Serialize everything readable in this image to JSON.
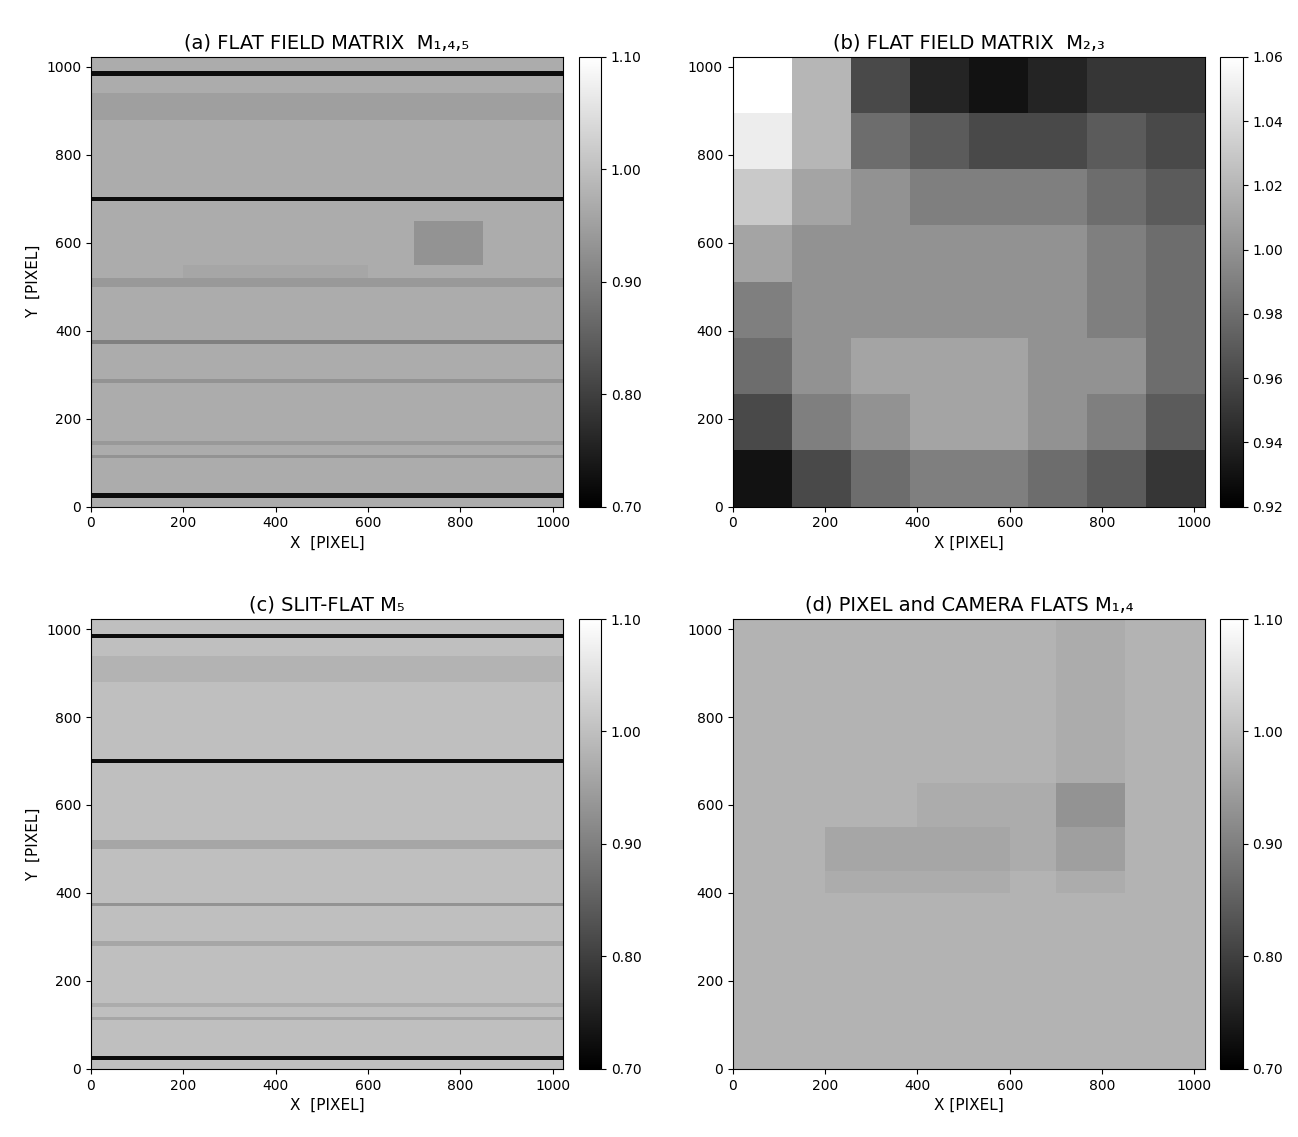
{
  "chart_data": [
    {
      "type": "heatmap",
      "title": "(a) FLAT FIELD MATRIX  M₁,₄,₅",
      "xlabel": "X  [PIXEL]",
      "ylabel": "Y  [PIXEL]",
      "xlim": [
        0,
        1023
      ],
      "ylim": [
        0,
        1023
      ],
      "xticks": [
        0,
        200,
        400,
        600,
        800,
        1000
      ],
      "yticks": [
        0,
        200,
        400,
        600,
        800,
        1000
      ],
      "x_edges": [
        0,
        200,
        400,
        600,
        700,
        850,
        1023
      ],
      "y_edges": [
        0,
        20,
        30,
        110,
        118,
        140,
        150,
        280,
        290,
        370,
        378,
        500,
        520,
        550,
        650,
        695,
        705,
        880,
        940,
        980,
        990,
        1023
      ],
      "cells": [
        [
          0.97,
          0.97,
          0.97,
          0.97,
          0.97,
          0.97
        ],
        [
          0.72,
          0.72,
          0.72,
          0.72,
          0.72,
          0.72
        ],
        [
          0.97,
          0.97,
          0.97,
          0.97,
          0.97,
          0.97
        ],
        [
          0.93,
          0.93,
          0.93,
          0.93,
          0.93,
          0.93
        ],
        [
          0.97,
          0.97,
          0.97,
          0.97,
          0.97,
          0.97
        ],
        [
          0.94,
          0.94,
          0.94,
          0.94,
          0.94,
          0.94
        ],
        [
          0.97,
          0.97,
          0.97,
          0.97,
          0.97,
          0.97
        ],
        [
          0.93,
          0.93,
          0.93,
          0.93,
          0.93,
          0.93
        ],
        [
          0.97,
          0.97,
          0.97,
          0.97,
          0.97,
          0.97
        ],
        [
          0.9,
          0.9,
          0.9,
          0.9,
          0.9,
          0.9
        ],
        [
          0.97,
          0.97,
          0.97,
          0.97,
          0.97,
          0.97
        ],
        [
          0.94,
          0.94,
          0.94,
          0.94,
          0.94,
          0.94
        ],
        [
          0.97,
          0.96,
          0.96,
          0.97,
          0.97,
          0.97
        ],
        [
          0.97,
          0.97,
          0.97,
          0.97,
          0.93,
          0.97
        ],
        [
          0.97,
          0.97,
          0.97,
          0.97,
          0.97,
          0.97
        ],
        [
          0.72,
          0.72,
          0.72,
          0.72,
          0.72,
          0.72
        ],
        [
          0.97,
          0.97,
          0.97,
          0.97,
          0.97,
          0.97
        ],
        [
          0.95,
          0.95,
          0.95,
          0.95,
          0.95,
          0.95
        ],
        [
          0.97,
          0.97,
          0.97,
          0.97,
          0.97,
          0.97
        ],
        [
          0.72,
          0.72,
          0.72,
          0.72,
          0.72,
          0.72
        ],
        [
          0.97,
          0.97,
          0.97,
          0.97,
          0.97,
          0.97
        ]
      ],
      "colorbar": {
        "range": [
          0.7,
          1.1
        ],
        "ticks": [
          {
            "value": 0.7,
            "label": "0.70"
          },
          {
            "value": 0.8,
            "label": "0.80"
          },
          {
            "value": 0.9,
            "label": "0.90"
          },
          {
            "value": 1.0,
            "label": "1.00"
          },
          {
            "value": 1.1,
            "label": "1.10"
          }
        ]
      }
    },
    {
      "type": "heatmap",
      "title": "(b) FLAT FIELD MATRIX  M₂,₃",
      "xlabel": "X [PIXEL]",
      "xlim": [
        0,
        1023
      ],
      "ylim": [
        0,
        1023
      ],
      "xticks": [
        0,
        200,
        400,
        600,
        800,
        1000
      ],
      "yticks": [
        0,
        200,
        400,
        600,
        800,
        1000
      ],
      "x_edges": [
        0,
        128,
        256,
        384,
        512,
        640,
        768,
        896,
        1023
      ],
      "y_edges": [
        0,
        128,
        256,
        384,
        512,
        640,
        768,
        896,
        1023
      ],
      "cells": [
        [
          0.93,
          0.96,
          0.98,
          0.99,
          0.99,
          0.98,
          0.97,
          0.95
        ],
        [
          0.96,
          0.99,
          1.0,
          1.01,
          1.01,
          1.0,
          0.99,
          0.97
        ],
        [
          0.98,
          1.0,
          1.01,
          1.01,
          1.01,
          1.0,
          1.0,
          0.98
        ],
        [
          0.99,
          1.0,
          1.0,
          1.0,
          1.0,
          1.0,
          0.99,
          0.98
        ],
        [
          1.01,
          1.0,
          1.0,
          1.0,
          1.0,
          1.0,
          0.99,
          0.98
        ],
        [
          1.03,
          1.01,
          1.0,
          0.99,
          0.99,
          0.99,
          0.98,
          0.97
        ],
        [
          1.05,
          1.02,
          0.98,
          0.97,
          0.96,
          0.96,
          0.97,
          0.96
        ],
        [
          1.06,
          1.02,
          0.96,
          0.94,
          0.93,
          0.94,
          0.95,
          0.95
        ]
      ],
      "colorbar": {
        "range": [
          0.92,
          1.06
        ],
        "ticks": [
          {
            "value": 0.92,
            "label": "0.92"
          },
          {
            "value": 0.94,
            "label": "0.94"
          },
          {
            "value": 0.96,
            "label": "0.96"
          },
          {
            "value": 0.98,
            "label": "0.98"
          },
          {
            "value": 1.0,
            "label": "1.00"
          },
          {
            "value": 1.02,
            "label": "1.02"
          },
          {
            "value": 1.04,
            "label": "1.04"
          },
          {
            "value": 1.06,
            "label": "1.06"
          }
        ]
      }
    },
    {
      "type": "heatmap",
      "title": "(c) SLIT-FLAT M₅",
      "xlabel": "X  [PIXEL]",
      "ylabel": "Y  [PIXEL]",
      "xlim": [
        0,
        1023
      ],
      "ylim": [
        0,
        1023
      ],
      "xticks": [
        0,
        200,
        400,
        600,
        800,
        1000
      ],
      "yticks": [
        0,
        200,
        400,
        600,
        800,
        1000
      ],
      "x_edges": [
        0,
        1023
      ],
      "y_edges": [
        0,
        20,
        30,
        110,
        118,
        140,
        150,
        280,
        290,
        370,
        378,
        500,
        520,
        550,
        650,
        695,
        705,
        880,
        940,
        980,
        990,
        1023
      ],
      "cells": [
        [
          1.0
        ],
        [
          0.72
        ],
        [
          1.0
        ],
        [
          0.96
        ],
        [
          1.0
        ],
        [
          0.97
        ],
        [
          1.0
        ],
        [
          0.96
        ],
        [
          1.0
        ],
        [
          0.93
        ],
        [
          1.0
        ],
        [
          0.96
        ],
        [
          1.0
        ],
        [
          1.0
        ],
        [
          1.0
        ],
        [
          0.72
        ],
        [
          1.0
        ],
        [
          0.98
        ],
        [
          1.0
        ],
        [
          0.72
        ],
        [
          1.0
        ]
      ],
      "colorbar": {
        "range": [
          0.7,
          1.1
        ],
        "ticks": [
          {
            "value": 0.7,
            "label": "0.70"
          },
          {
            "value": 0.8,
            "label": "0.80"
          },
          {
            "value": 0.9,
            "label": "0.90"
          },
          {
            "value": 1.0,
            "label": "1.00"
          },
          {
            "value": 1.1,
            "label": "1.10"
          }
        ]
      }
    },
    {
      "type": "heatmap",
      "title": "(d) PIXEL and CAMERA FLATS M₁,₄",
      "xlabel": "X [PIXEL]",
      "xlim": [
        0,
        1023
      ],
      "ylim": [
        0,
        1023
      ],
      "xticks": [
        0,
        200,
        400,
        600,
        800,
        1000
      ],
      "yticks": [
        0,
        200,
        400,
        600,
        800,
        1000
      ],
      "x_edges": [
        0,
        200,
        400,
        600,
        700,
        850,
        1023
      ],
      "y_edges": [
        0,
        400,
        450,
        550,
        650,
        1023
      ],
      "cells": [
        [
          0.98,
          0.98,
          0.98,
          0.98,
          0.98,
          0.98
        ],
        [
          0.98,
          0.97,
          0.97,
          0.98,
          0.97,
          0.98
        ],
        [
          0.98,
          0.96,
          0.96,
          0.97,
          0.95,
          0.98
        ],
        [
          0.98,
          0.98,
          0.97,
          0.97,
          0.93,
          0.98
        ],
        [
          0.98,
          0.98,
          0.98,
          0.98,
          0.97,
          0.98
        ]
      ],
      "colorbar": {
        "range": [
          0.7,
          1.1
        ],
        "ticks": [
          {
            "value": 0.7,
            "label": "0.70"
          },
          {
            "value": 0.8,
            "label": "0.80"
          },
          {
            "value": 0.9,
            "label": "0.90"
          },
          {
            "value": 1.0,
            "label": "1.00"
          },
          {
            "value": 1.1,
            "label": "1.10"
          }
        ]
      }
    }
  ]
}
